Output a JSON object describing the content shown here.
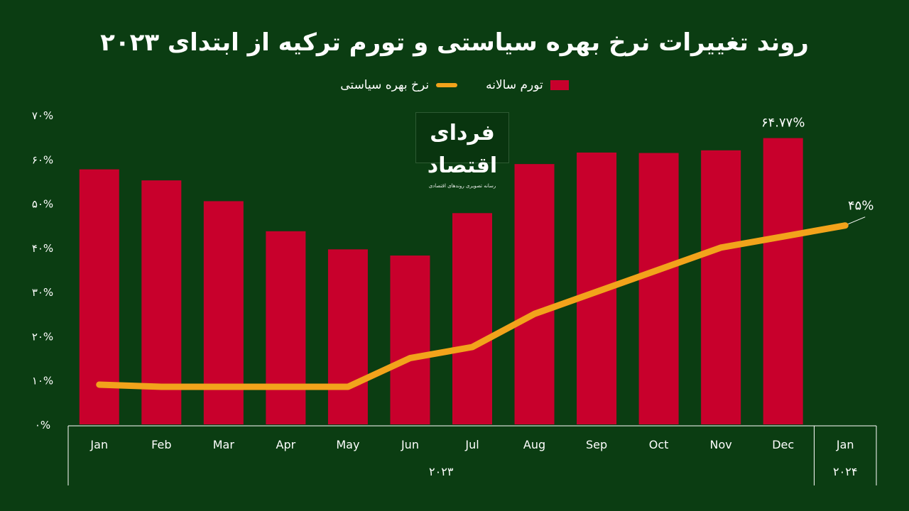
{
  "title": "روند تغییرات نرخ بهره سیاستی و تورم ترکیه از ابتدای ۲۰۲۳",
  "logo": {
    "name": "فردای اقتصاد",
    "tagline": "رسانه تصویری روندهای اقتصادی"
  },
  "colors": {
    "background": "#0b3d12",
    "bar": "#c8002c",
    "line": "#f2a31b",
    "text": "#ffffff"
  },
  "chart_data": {
    "type": "bar",
    "categories": [
      "Jan",
      "Feb",
      "Mar",
      "Apr",
      "May",
      "Jun",
      "Jul",
      "Aug",
      "Sep",
      "Oct",
      "Nov",
      "Dec",
      "Jan"
    ],
    "year_groups": [
      {
        "label": "۲۰۲۳",
        "from": 0,
        "to": 11
      },
      {
        "label": "۲۰۲۴",
        "from": 12,
        "to": 12
      }
    ],
    "ylim": [
      0,
      70
    ],
    "yticks": [
      0,
      10,
      20,
      30,
      40,
      50,
      60,
      70
    ],
    "ytick_labels": [
      "۰%",
      "۱۰%",
      "۲۰%",
      "۳۰%",
      "۴۰%",
      "۵۰%",
      "۶۰%",
      "۷۰%"
    ],
    "legend": {
      "bar": "تورم سالانه",
      "line": "نرخ بهره سیاستی"
    },
    "series": [
      {
        "name": "تورم سالانه",
        "type": "bar",
        "values": [
          57.7,
          55.2,
          50.5,
          43.7,
          39.6,
          38.2,
          47.8,
          58.9,
          61.5,
          61.4,
          62.0,
          64.77,
          null
        ]
      },
      {
        "name": "نرخ بهره سیاستی",
        "type": "line",
        "values": [
          9,
          8.5,
          8.5,
          8.5,
          8.5,
          15,
          17.5,
          25,
          30,
          35,
          40,
          42.5,
          45
        ]
      }
    ],
    "annotations": [
      {
        "series": "تورم سالانه",
        "index": 11,
        "text": "۶۴.۷۷%"
      },
      {
        "series": "نرخ بهره سیاستی",
        "index": 12,
        "text": "۴۵%"
      }
    ]
  }
}
